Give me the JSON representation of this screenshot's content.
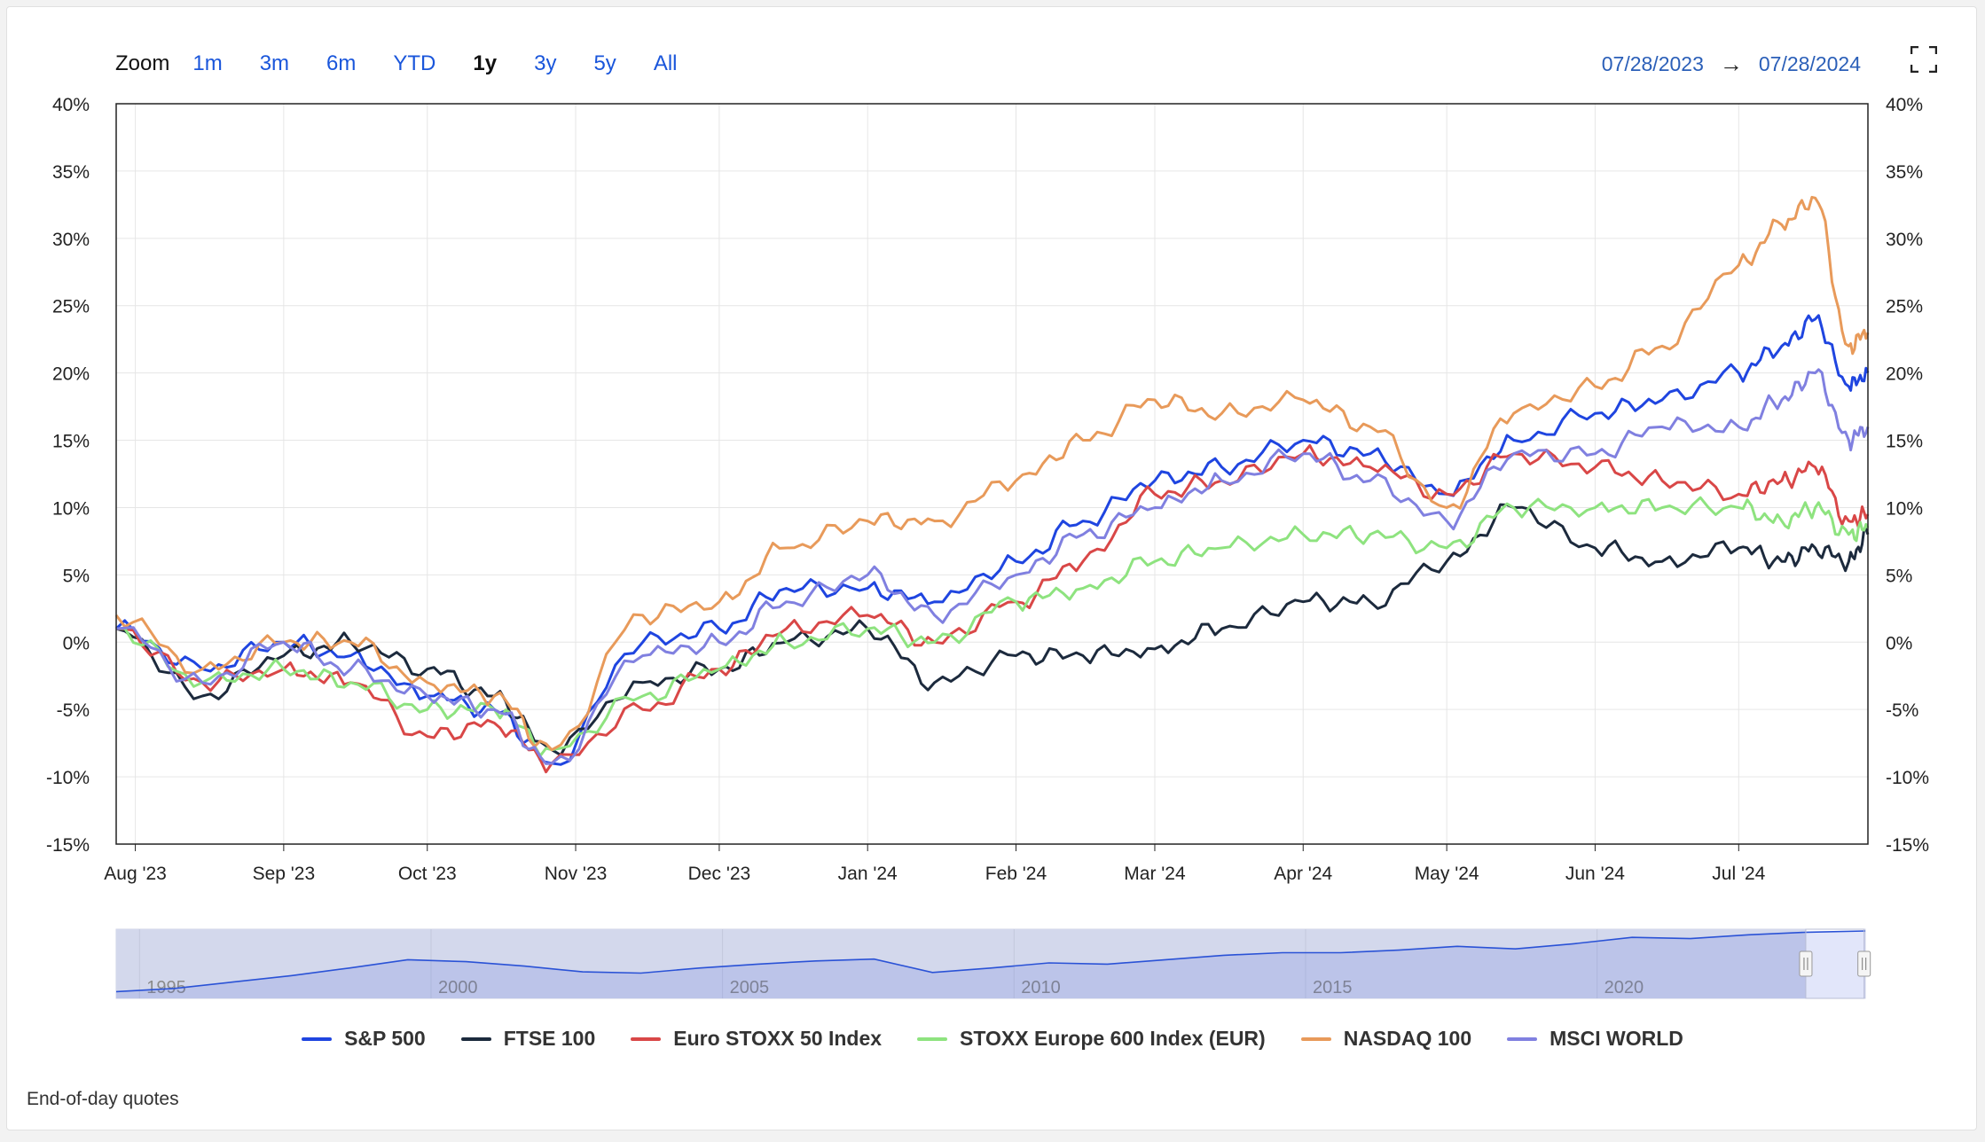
{
  "toolbar": {
    "zoom_label": "Zoom",
    "zoom_options": [
      "1m",
      "3m",
      "6m",
      "YTD",
      "1y",
      "3y",
      "5y",
      "All"
    ],
    "active_zoom": "1y",
    "range_from": "07/28/2023",
    "range_arrow": "→",
    "range_to": "07/28/2024",
    "fullscreen_icon": "fullscreen-icon"
  },
  "footnote": "End-of-day quotes",
  "chart_data": {
    "type": "line",
    "title": "",
    "xlabel": "",
    "ylabel": "",
    "x_ticks": [
      "Aug '23",
      "Sep '23",
      "Oct '23",
      "Nov '23",
      "Dec '23",
      "Jan '24",
      "Feb '24",
      "Mar '24",
      "Apr '24",
      "May '24",
      "Jun '24",
      "Jul '24"
    ],
    "x_tick_dates": [
      "2023-08-01",
      "2023-09-01",
      "2023-10-01",
      "2023-11-01",
      "2023-12-01",
      "2024-01-01",
      "2024-02-01",
      "2024-03-01",
      "2024-04-01",
      "2024-05-01",
      "2024-06-01",
      "2024-07-01"
    ],
    "x_range": [
      "2023-07-28",
      "2024-07-28"
    ],
    "y_ticks": [
      "40%",
      "35%",
      "30%",
      "25%",
      "20%",
      "15%",
      "10%",
      "5%",
      "0%",
      "-5%",
      "-10%",
      "-15%"
    ],
    "ylim": [
      -15,
      40
    ],
    "y_unit": "%",
    "grid": true,
    "legend_position": "bottom",
    "dates": [
      "2023-07-28",
      "2023-08-15",
      "2023-09-01",
      "2023-09-15",
      "2023-10-01",
      "2023-10-15",
      "2023-10-27",
      "2023-11-15",
      "2023-12-01",
      "2023-12-15",
      "2024-01-01",
      "2024-01-15",
      "2024-02-01",
      "2024-02-15",
      "2024-03-01",
      "2024-03-15",
      "2024-04-01",
      "2024-04-15",
      "2024-05-01",
      "2024-05-15",
      "2024-06-01",
      "2024-06-15",
      "2024-07-01",
      "2024-07-10",
      "2024-07-17",
      "2024-07-24",
      "2024-07-28"
    ],
    "series": [
      {
        "name": "S&P 500",
        "color": "#1f45e0",
        "values": [
          1,
          -2,
          0,
          -1,
          -4,
          -5,
          -9,
          0,
          1,
          4,
          4,
          3,
          6,
          9,
          12,
          13,
          15,
          14,
          11,
          15,
          17,
          18,
          20,
          22,
          24,
          19,
          20
        ]
      },
      {
        "name": "FTSE 100",
        "color": "#1c2a3d",
        "values": [
          1,
          -4,
          -1,
          0,
          -2,
          -4,
          -8,
          -3,
          -2,
          0,
          1,
          -3,
          -1,
          -1,
          -0.5,
          1,
          3,
          3,
          6,
          10,
          7,
          6,
          7,
          6,
          7,
          6,
          8
        ]
      },
      {
        "name": "Euro STOXX 50 Index",
        "color": "#d94747",
        "values": [
          1,
          -3,
          -2,
          -3,
          -7,
          -6,
          -9,
          -5,
          -2,
          1,
          2,
          0,
          3,
          6,
          11,
          12,
          14,
          13,
          11,
          14,
          13,
          12,
          11,
          12,
          13,
          9,
          9.5
        ]
      },
      {
        "name": "STOXX Europe 600 Index (EUR)",
        "color": "#8ee37f",
        "values": [
          1,
          -3,
          -2,
          -3,
          -5,
          -5,
          -8,
          -4,
          -2,
          0,
          1,
          0,
          3,
          4,
          6,
          7,
          8,
          8,
          7,
          10,
          10,
          10,
          10,
          9,
          10,
          8,
          8.5
        ]
      },
      {
        "name": "NASDAQ 100",
        "color": "#e89a5a",
        "values": [
          2,
          -2,
          0,
          0,
          -3,
          -4,
          -8,
          2,
          3,
          7,
          9,
          9,
          12,
          15,
          18,
          17,
          18,
          16,
          10,
          17,
          19,
          22,
          28,
          31,
          33,
          22,
          23
        ]
      },
      {
        "name": "MSCI WORLD",
        "color": "#8080e0",
        "values": [
          1,
          -3,
          0,
          -2,
          -4,
          -5,
          -9,
          -1,
          0,
          3,
          5,
          2,
          5,
          8,
          10,
          12,
          14,
          12,
          9,
          14,
          14,
          16,
          16,
          18,
          20,
          15,
          16
        ]
      }
    ],
    "navigator": {
      "x_ticks": [
        "1995",
        "2000",
        "2005",
        "2010",
        "2015",
        "2020"
      ],
      "x_tick_years": [
        1995,
        2000,
        2005,
        2010,
        2015,
        2020
      ],
      "year_range": [
        1994.6,
        2024.6
      ],
      "selected_range_years": [
        2023.58,
        2024.58
      ],
      "values": [
        0.05,
        0.1,
        0.2,
        0.3,
        0.42,
        0.55,
        0.52,
        0.45,
        0.36,
        0.34,
        0.42,
        0.48,
        0.53,
        0.56,
        0.35,
        0.42,
        0.5,
        0.48,
        0.55,
        0.62,
        0.66,
        0.66,
        0.7,
        0.76,
        0.72,
        0.8,
        0.9,
        0.88,
        0.94,
        0.98,
        1.0
      ]
    }
  }
}
